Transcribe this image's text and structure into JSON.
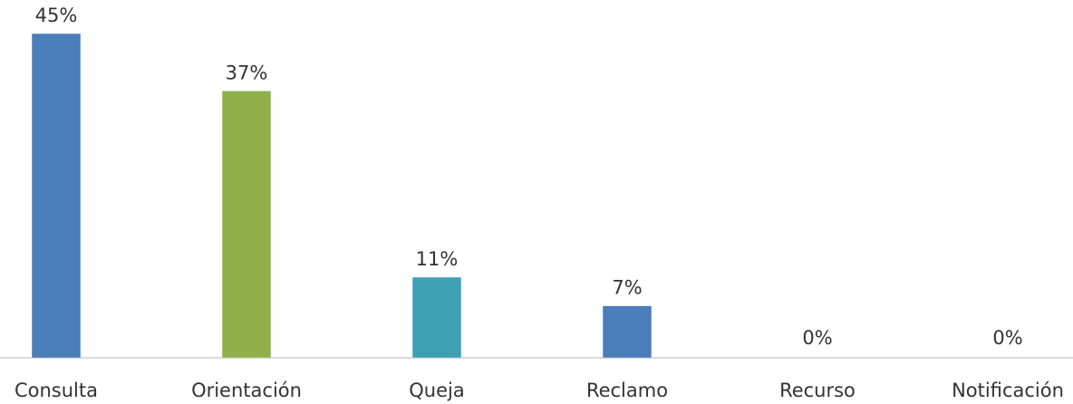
{
  "chart_data": {
    "type": "bar",
    "categories": [
      "Consulta",
      "Orientación",
      "Queja",
      "Reclamo",
      "Recurso",
      "Notificación"
    ],
    "values": [
      45,
      37,
      11,
      7,
      0,
      0
    ],
    "value_labels": [
      "45%",
      "37%",
      "11%",
      "7%",
      "0%",
      "0%"
    ],
    "colors": [
      "#4a7ebb",
      "#8fb04a",
      "#3e9fb5",
      "#4a7ebb",
      "#8fb04a",
      "#3e9fb5"
    ]
  }
}
